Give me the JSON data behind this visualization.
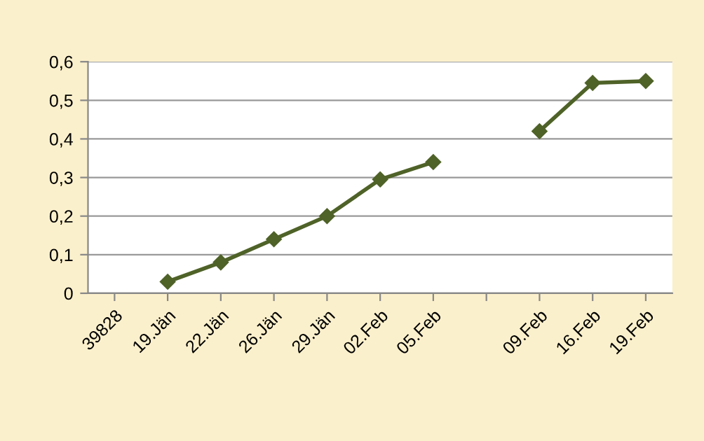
{
  "chart_data": {
    "type": "line",
    "categories": [
      "39828",
      "19.Jän",
      "22.Jän",
      "26.Jän",
      "29.Jän",
      "02.Feb",
      "05.Feb",
      null,
      "09.Feb",
      "16.Feb",
      "19.Feb"
    ],
    "series": [
      {
        "color": "#4f6228",
        "values": [
          null,
          0.03,
          0.08,
          0.14,
          0.2,
          0.295,
          0.34,
          null,
          0.42,
          0.545,
          0.55
        ]
      }
    ],
    "ylim": [
      0,
      0.6
    ],
    "yticks": [
      0,
      {
        "value": 0.1,
        "label": "0,1"
      },
      {
        "value": 0.2,
        "label": "0,2"
      },
      {
        "value": 0.3,
        "label": "0,3"
      },
      {
        "value": 0.4,
        "label": "0,4"
      },
      {
        "value": 0.5,
        "label": "0,5"
      },
      {
        "value": 0.6,
        "label": "0,6"
      }
    ],
    "grid": "y",
    "marker": "diamond",
    "line_style": "solid",
    "legend": false
  }
}
